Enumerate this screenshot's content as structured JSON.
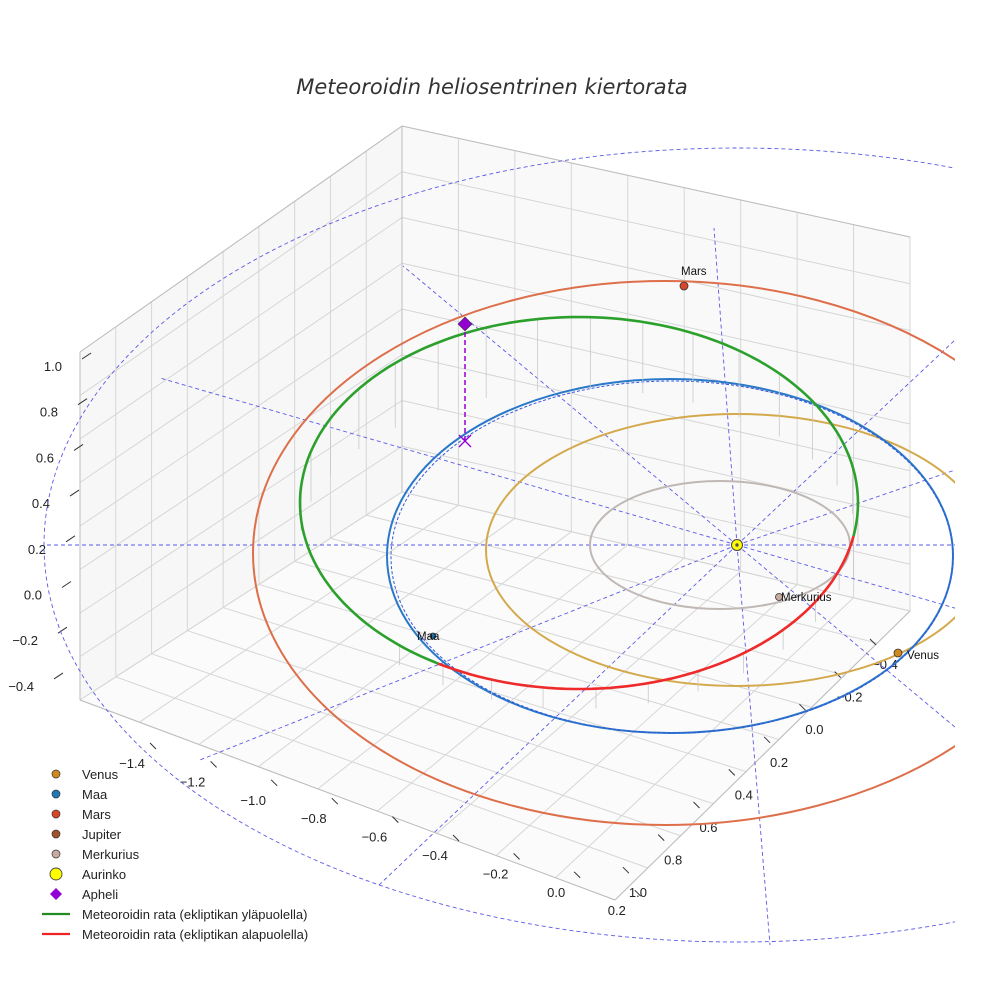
{
  "chart_data": {
    "type": "3d-line",
    "title": "Meteoroidin heliosentrinen kiertorata",
    "xlabel": "",
    "ylabel": "",
    "zlabel": "",
    "x_ticks": [
      "−1.4",
      "−1.2",
      "−1.0",
      "−0.8",
      "−0.6",
      "−0.4",
      "−0.2",
      "0.0",
      "0.2"
    ],
    "y_ticks": [
      "−0.4",
      "−0.2",
      "0.0",
      "0.2",
      "0.4",
      "0.6",
      "0.8",
      "1.0"
    ],
    "z_ticks": [
      "1.0",
      "0.8",
      "0.6",
      "0.4",
      "0.2",
      "0.0",
      "−0.2",
      "−0.4"
    ],
    "xlim": [
      -1.5,
      0.3
    ],
    "ylim": [
      -0.5,
      1.1
    ],
    "zlim": [
      -0.5,
      1.1
    ],
    "orbits": [
      {
        "name": "Merkurius",
        "a_au": 0.39,
        "color": "#c0b8b4"
      },
      {
        "name": "Venus",
        "a_au": 0.72,
        "color": "#d4a94c"
      },
      {
        "name": "Maa",
        "a_au": 1.0,
        "color": "#2a78c8"
      },
      {
        "name": "Mars",
        "a_au": 1.52,
        "color": "#dd6f4a"
      }
    ],
    "point_labels": [
      {
        "name": "Mars",
        "text": "Mars"
      },
      {
        "name": "Maa",
        "text": "Maa"
      },
      {
        "name": "Venus",
        "text": "Venus"
      },
      {
        "name": "Merkurius",
        "text": "Merkurius"
      }
    ],
    "meteoroid": {
      "above_ecliptic_color": "#2ca02c",
      "below_ecliptic_color": "#ee2a2a",
      "aphelion_color": "#9400d3"
    },
    "legend": [
      {
        "label": "Venus",
        "kind": "dot",
        "color": "#d0891e"
      },
      {
        "label": "Maa",
        "kind": "dot",
        "color": "#1f77b4"
      },
      {
        "label": "Mars",
        "kind": "dot",
        "color": "#d9472b"
      },
      {
        "label": "Jupiter",
        "kind": "dot",
        "color": "#a0522d"
      },
      {
        "label": "Merkurius",
        "kind": "dot",
        "color": "#c8aaa0"
      },
      {
        "label": "Aurinko",
        "kind": "sun",
        "color": "#ffff00"
      },
      {
        "label": "Apheli",
        "kind": "diamond",
        "color": "#9400d3"
      },
      {
        "label": "Meteoroidin rata (ekliptikan yläpuolella)",
        "kind": "line",
        "color": "#228b22"
      },
      {
        "label": "Meteoroidin rata (ekliptikan alapuolella)",
        "kind": "line",
        "color": "#ee2222"
      }
    ],
    "legend_position": "bottom-left"
  }
}
